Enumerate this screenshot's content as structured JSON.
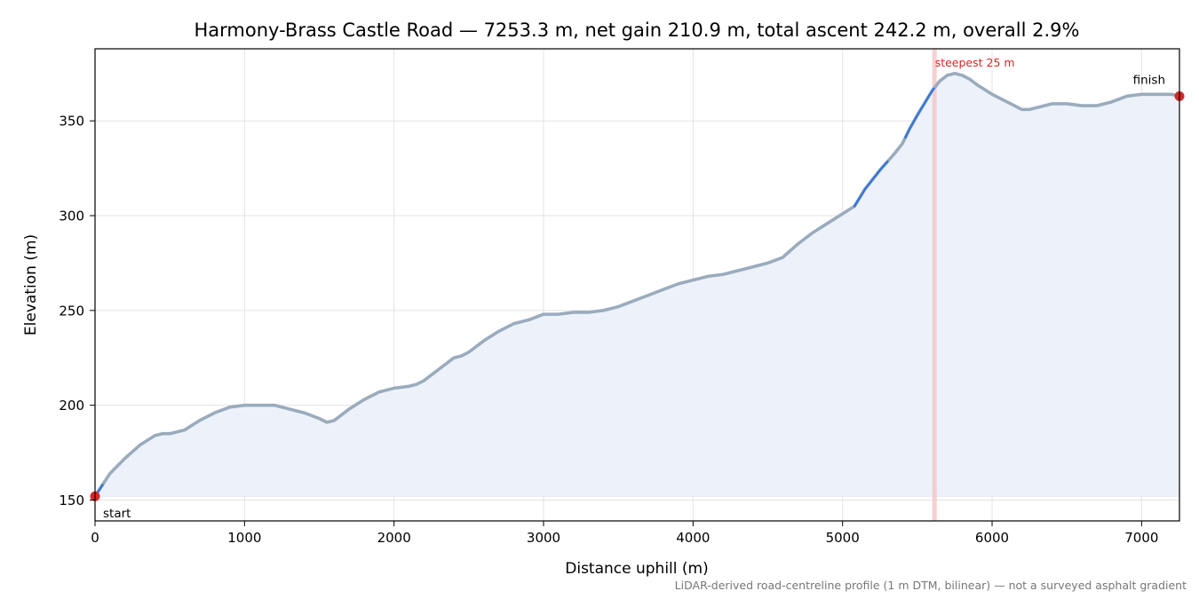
{
  "chart_data": {
    "type": "line",
    "title": "Harmony-Brass Castle Road — 7253.3 m, net gain 210.9 m, total ascent 242.2 m, overall 2.9%",
    "xlabel": "Distance uphill (m)",
    "ylabel": "Elevation (m)",
    "xlim": [
      0,
      7253.3
    ],
    "ylim": [
      139,
      388
    ],
    "x_ticks": [
      0,
      1000,
      2000,
      3000,
      4000,
      5000,
      6000,
      7000
    ],
    "y_ticks": [
      150,
      200,
      250,
      300,
      350
    ],
    "grid": true,
    "footnote": "LiDAR-derived road-centreline profile (1 m DTM, bilinear) — not a surveyed asphalt gradient",
    "series": [
      {
        "x": [
          0,
          50,
          100,
          150,
          200,
          300,
          400,
          450,
          500,
          600,
          700,
          800,
          900,
          1000,
          1100,
          1200,
          1300,
          1400,
          1500,
          1550,
          1600,
          1700,
          1800,
          1900,
          2000,
          2100,
          2150,
          2200,
          2300,
          2400,
          2450,
          2500,
          2600,
          2700,
          2800,
          2900,
          3000,
          3100,
          3200,
          3300,
          3400,
          3500,
          3600,
          3700,
          3800,
          3900,
          4000,
          4100,
          4200,
          4300,
          4400,
          4500,
          4600,
          4700,
          4800,
          4900,
          5000,
          5080,
          5150,
          5250,
          5350,
          5400,
          5450,
          5500,
          5600,
          5650,
          5700,
          5750,
          5800,
          5850,
          5900,
          6000,
          6100,
          6200,
          6250,
          6300,
          6400,
          6450,
          6500,
          6600,
          6700,
          6800,
          6900,
          7000,
          7100,
          7200,
          7253.3
        ],
        "y": [
          152,
          158,
          164,
          168,
          172,
          179,
          184,
          185,
          185,
          187,
          192,
          196,
          199,
          200,
          200,
          200,
          198,
          196,
          193,
          191,
          192,
          198,
          203,
          207,
          209,
          210,
          211,
          213,
          219,
          225,
          226,
          228,
          234,
          239,
          243,
          245,
          248,
          248,
          249,
          249,
          250,
          252,
          255,
          258,
          261,
          264,
          266,
          268,
          269,
          271,
          273,
          275,
          278,
          285,
          291,
          296,
          301,
          305,
          314,
          324,
          333,
          338,
          346,
          353,
          366,
          371,
          374,
          375,
          374,
          372,
          369,
          364,
          360,
          356,
          356,
          357,
          359,
          359,
          359,
          358,
          358,
          360,
          363,
          364,
          364,
          364,
          363
        ]
      }
    ],
    "steep_sections": [
      [
        0,
        50
      ],
      [
        5080,
        5300
      ],
      [
        5420,
        5610
      ]
    ],
    "steepest_segment": {
      "start": 5600,
      "end": 5625,
      "label": "steepest 25 m"
    },
    "markers": [
      {
        "x": 0,
        "y": 152,
        "label": "start"
      },
      {
        "x": 7253.3,
        "y": 363,
        "label": "finish"
      }
    ],
    "colors": {
      "line": "#9aabbd",
      "steep_line": "#3a78d6",
      "fill": "#edf2fa",
      "marker": "#d62728",
      "steep_band": "#f5c4c4"
    }
  }
}
